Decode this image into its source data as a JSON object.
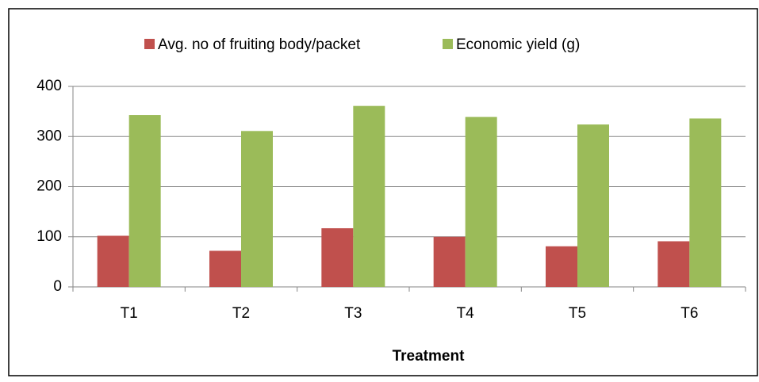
{
  "chart_data": {
    "type": "bar",
    "x_label": "Treatment",
    "categories": [
      "T1",
      "T2",
      "T3",
      "T4",
      "T5",
      "T6"
    ],
    "series": [
      {
        "name": "Avg. no of fruiting body/packet",
        "color": "#c0504d",
        "values": [
          102,
          72,
          117,
          100,
          81,
          91
        ]
      },
      {
        "name": "Economic yield (g)",
        "color": "#9bbb59",
        "values": [
          343,
          311,
          361,
          339,
          324,
          336
        ]
      }
    ],
    "ylim": [
      0,
      400
    ],
    "yticks": [
      0,
      100,
      200,
      300,
      400
    ],
    "grid": true,
    "legend": "top"
  }
}
